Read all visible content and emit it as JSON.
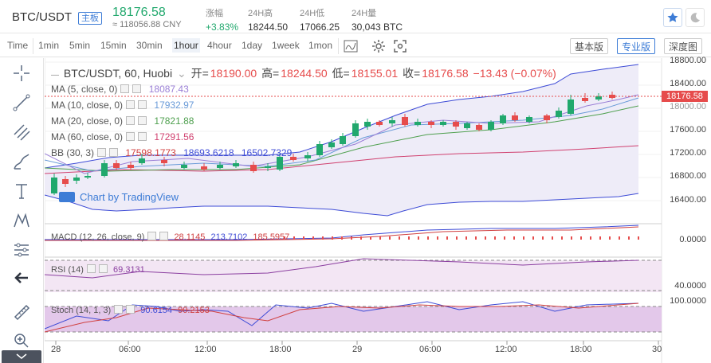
{
  "market": {
    "pair": "BTC/USDT",
    "badge": "主板",
    "price": "18176.58",
    "cny": "≈ 118056.88 CNY",
    "stats": [
      {
        "label": "涨幅",
        "value": "+3.83%"
      },
      {
        "label": "24H高",
        "value": "18244.50"
      },
      {
        "label": "24H低",
        "value": "17066.25"
      },
      {
        "label": "24H量",
        "value": "30,043 BTC"
      }
    ],
    "icons": [
      "star-icon",
      "moon-icon"
    ]
  },
  "toolbar": {
    "timeframes": [
      "Time",
      "1min",
      "5min",
      "15min",
      "30min",
      "1hour",
      "4hour",
      "1day",
      "1week",
      "1mon"
    ],
    "active_timeframe": "1hour",
    "views": [
      "基本版",
      "专业版",
      "深度图"
    ],
    "active_view": "专业版"
  },
  "chart": {
    "title": "BTC/USDT, 60, Huobi",
    "ohlc": {
      "open_label": "开=",
      "open": "18190.00",
      "high_label": "高=",
      "high": "18244.50",
      "low_label": "低=",
      "low": "18155.01",
      "close_label": "收=",
      "close": "18176.58",
      "change": "−13.43 (−0.07%)"
    },
    "ma": [
      {
        "label": "MA (5, close, 0)",
        "value": "18087.43",
        "color": "#9a7fd6"
      },
      {
        "label": "MA (10, close, 0)",
        "value": "17932.97",
        "color": "#6a9bd8"
      },
      {
        "label": "MA (20, close, 0)",
        "value": "17821.88",
        "color": "#4fa04f"
      },
      {
        "label": "MA (60, close, 0)",
        "value": "17291.56",
        "color": "#d0406f"
      }
    ],
    "bb": {
      "label": "BB (30, 3)",
      "values": [
        "17598.1773",
        "18693.6218",
        "16502.7329"
      ],
      "colors": [
        "#d04040",
        "#3d4bd6",
        "#3d4bd6"
      ]
    },
    "current_price": "18176.58",
    "y_ticks": [
      "18800.00",
      "18400.00",
      "18000.00",
      "17600.00",
      "17200.00",
      "16800.00",
      "16400.00"
    ],
    "macd": {
      "label": "MACD (12, 26, close, 9)",
      "values": [
        "28.1145",
        "213.7102",
        "185.5957"
      ],
      "colors": [
        "#d04040",
        "#3d4bd6",
        "#d04040"
      ],
      "y_tick": "0.0000"
    },
    "rsi": {
      "label": "RSI (14)",
      "value": "69.3131",
      "y_tick": "40.0000"
    },
    "stoch": {
      "label": "Stoch (14, 1, 3)",
      "values": [
        "90.6154",
        "90.2153"
      ],
      "y_tick": "100.0000"
    },
    "x_ticks": [
      "28",
      "06:00",
      "12:00",
      "18:00",
      "29",
      "06:00",
      "12:00",
      "18:00",
      "30"
    ],
    "watermark": "Chart by TradingView",
    "colors": {
      "up": "#21a86d",
      "down": "#e64c4c",
      "bb_fill": "#eceaf7",
      "panel_fill": "#f3e6f4"
    }
  }
}
